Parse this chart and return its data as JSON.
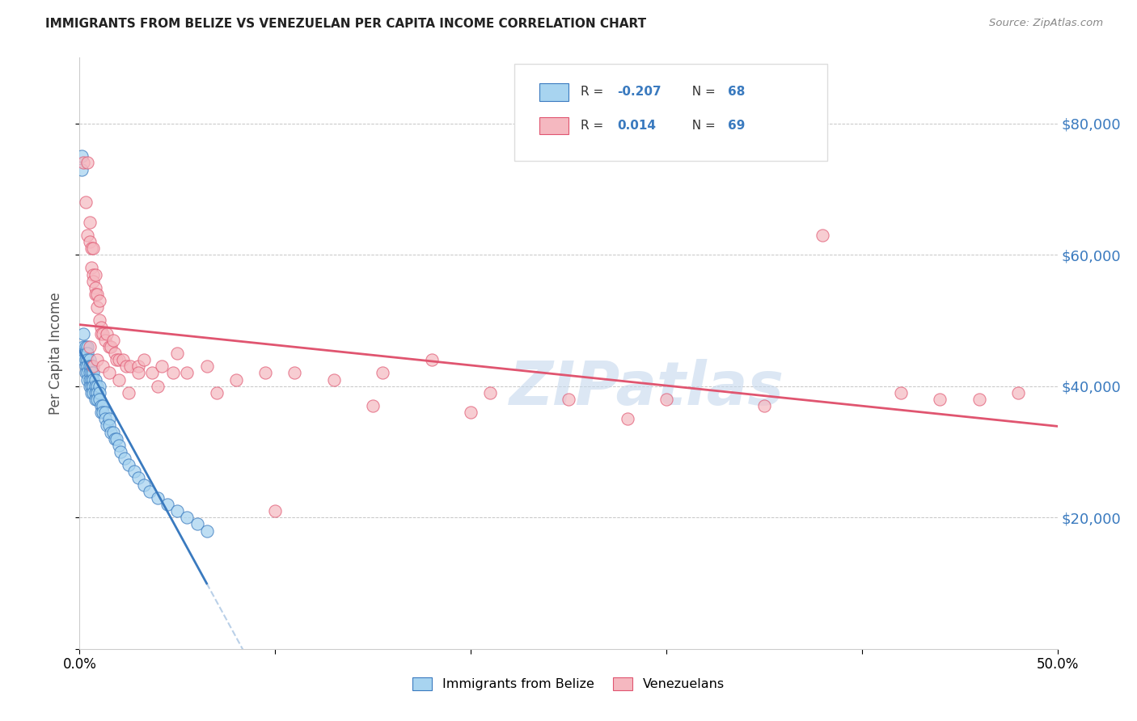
{
  "title": "IMMIGRANTS FROM BELIZE VS VENEZUELAN PER CAPITA INCOME CORRELATION CHART",
  "source": "Source: ZipAtlas.com",
  "ylabel": "Per Capita Income",
  "xlim": [
    0,
    0.5
  ],
  "ylim": [
    0,
    90000
  ],
  "yticks": [
    0,
    20000,
    40000,
    60000,
    80000
  ],
  "ytick_labels": [
    "",
    "$20,000",
    "$40,000",
    "$60,000",
    "$80,000"
  ],
  "xticks": [
    0.0,
    0.1,
    0.2,
    0.3,
    0.4,
    0.5
  ],
  "xtick_labels": [
    "0.0%",
    "",
    "",
    "",
    "",
    "50.0%"
  ],
  "legend_labels": [
    "Immigrants from Belize",
    "Venezuelans"
  ],
  "R_belize": -0.207,
  "N_belize": 68,
  "R_venezuela": 0.014,
  "N_venezuela": 69,
  "color_belize": "#a8d4f0",
  "color_venezuela": "#f5b8c0",
  "line_color_belize": "#3a7abf",
  "line_color_venezuela": "#e05570",
  "watermark": "ZIPatlas",
  "background_color": "#ffffff",
  "belize_x": [
    0.001,
    0.001,
    0.002,
    0.002,
    0.002,
    0.002,
    0.003,
    0.003,
    0.003,
    0.003,
    0.003,
    0.004,
    0.004,
    0.004,
    0.004,
    0.004,
    0.004,
    0.005,
    0.005,
    0.005,
    0.005,
    0.005,
    0.006,
    0.006,
    0.006,
    0.006,
    0.006,
    0.007,
    0.007,
    0.007,
    0.007,
    0.008,
    0.008,
    0.008,
    0.008,
    0.009,
    0.009,
    0.009,
    0.01,
    0.01,
    0.01,
    0.011,
    0.011,
    0.012,
    0.012,
    0.013,
    0.013,
    0.014,
    0.015,
    0.015,
    0.016,
    0.017,
    0.018,
    0.019,
    0.02,
    0.021,
    0.023,
    0.025,
    0.028,
    0.03,
    0.033,
    0.036,
    0.04,
    0.045,
    0.05,
    0.055,
    0.06,
    0.065
  ],
  "belize_y": [
    75000,
    73000,
    48000,
    46000,
    45000,
    44000,
    46000,
    45000,
    44000,
    43000,
    42000,
    46000,
    45000,
    44000,
    43000,
    42000,
    41000,
    44000,
    43000,
    42000,
    41000,
    40000,
    43000,
    42000,
    41000,
    40000,
    39000,
    42000,
    41000,
    40000,
    39000,
    41000,
    40000,
    39000,
    38000,
    40000,
    39000,
    38000,
    40000,
    39000,
    38000,
    37000,
    36000,
    37000,
    36000,
    36000,
    35000,
    34000,
    35000,
    34000,
    33000,
    33000,
    32000,
    32000,
    31000,
    30000,
    29000,
    28000,
    27000,
    26000,
    25000,
    24000,
    23000,
    22000,
    21000,
    20000,
    19000,
    18000
  ],
  "venezuela_x": [
    0.002,
    0.003,
    0.004,
    0.004,
    0.005,
    0.005,
    0.006,
    0.006,
    0.007,
    0.007,
    0.007,
    0.008,
    0.008,
    0.008,
    0.009,
    0.009,
    0.01,
    0.01,
    0.011,
    0.011,
    0.012,
    0.013,
    0.014,
    0.015,
    0.016,
    0.017,
    0.018,
    0.019,
    0.02,
    0.022,
    0.024,
    0.026,
    0.03,
    0.033,
    0.037,
    0.042,
    0.048,
    0.055,
    0.065,
    0.08,
    0.095,
    0.11,
    0.13,
    0.155,
    0.18,
    0.21,
    0.25,
    0.3,
    0.35,
    0.42,
    0.44,
    0.46,
    0.48,
    0.005,
    0.007,
    0.009,
    0.012,
    0.015,
    0.02,
    0.025,
    0.03,
    0.04,
    0.05,
    0.07,
    0.1,
    0.15,
    0.2,
    0.28,
    0.38
  ],
  "venezuela_y": [
    74000,
    68000,
    63000,
    74000,
    62000,
    65000,
    61000,
    58000,
    57000,
    56000,
    61000,
    55000,
    54000,
    57000,
    54000,
    52000,
    50000,
    53000,
    49000,
    48000,
    48000,
    47000,
    48000,
    46000,
    46000,
    47000,
    45000,
    44000,
    44000,
    44000,
    43000,
    43000,
    43000,
    44000,
    42000,
    43000,
    42000,
    42000,
    43000,
    41000,
    42000,
    42000,
    41000,
    42000,
    44000,
    39000,
    38000,
    38000,
    37000,
    39000,
    38000,
    38000,
    39000,
    46000,
    43000,
    44000,
    43000,
    42000,
    41000,
    39000,
    42000,
    40000,
    45000,
    39000,
    21000,
    37000,
    36000,
    35000,
    63000
  ]
}
